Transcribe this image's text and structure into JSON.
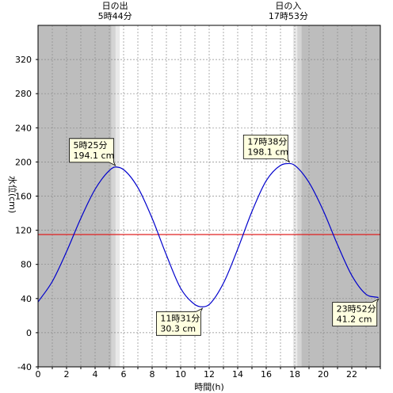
{
  "chart_data": {
    "type": "line",
    "xlabel": "時間(h)",
    "ylabel": "水位(cm)",
    "xlim": [
      0,
      24
    ],
    "ylim": [
      -40,
      360
    ],
    "x_ticks": [
      0,
      2,
      4,
      6,
      8,
      10,
      12,
      14,
      16,
      18,
      20,
      22
    ],
    "y_ticks": [
      -40,
      0,
      40,
      80,
      120,
      160,
      200,
      240,
      280,
      320
    ],
    "grid": true,
    "reference_line": {
      "value": 115,
      "color": "#e02020"
    },
    "series": [
      {
        "color": "#0000cc",
        "x": [
          0,
          1,
          2,
          3,
          4,
          5,
          5.42,
          6,
          7,
          8,
          9,
          10,
          11,
          11.52,
          12,
          13,
          14,
          15,
          16,
          17,
          17.63,
          18,
          19,
          20,
          21,
          22,
          23,
          23.87
        ],
        "y": [
          36,
          60,
          95,
          134,
          168,
          190,
          194.1,
          191,
          170,
          134,
          91,
          52,
          33,
          30.3,
          33,
          58,
          98,
          142,
          178,
          196,
          198.1,
          196,
          176,
          143,
          103,
          67,
          45,
          41.2
        ]
      }
    ],
    "sun_events": [
      {
        "label": "日の出",
        "time": "5時44分",
        "hour": 5.73
      },
      {
        "label": "日の入",
        "time": "17時53分",
        "hour": 17.88
      }
    ],
    "annotations": [
      {
        "time": "5時25分",
        "value": "194.1 cm",
        "x": 5.42,
        "y": 194.1,
        "place": "above-left"
      },
      {
        "time": "17時38分",
        "value": "198.1 cm",
        "x": 17.63,
        "y": 198.1,
        "place": "above-left"
      },
      {
        "time": "11時31分",
        "value": "30.3 cm",
        "x": 11.52,
        "y": 30.3,
        "place": "below-left"
      },
      {
        "time": "23時52分",
        "value": "41.2 cm",
        "x": 23.87,
        "y": 41.2,
        "place": "below-left"
      }
    ],
    "colors": {
      "night": "#bdbdbd",
      "twilight_dark": "#d4d4d4",
      "twilight_light": "#e9e9e9",
      "day": "#ffffff",
      "callout_bg": "#ffffe0"
    }
  }
}
